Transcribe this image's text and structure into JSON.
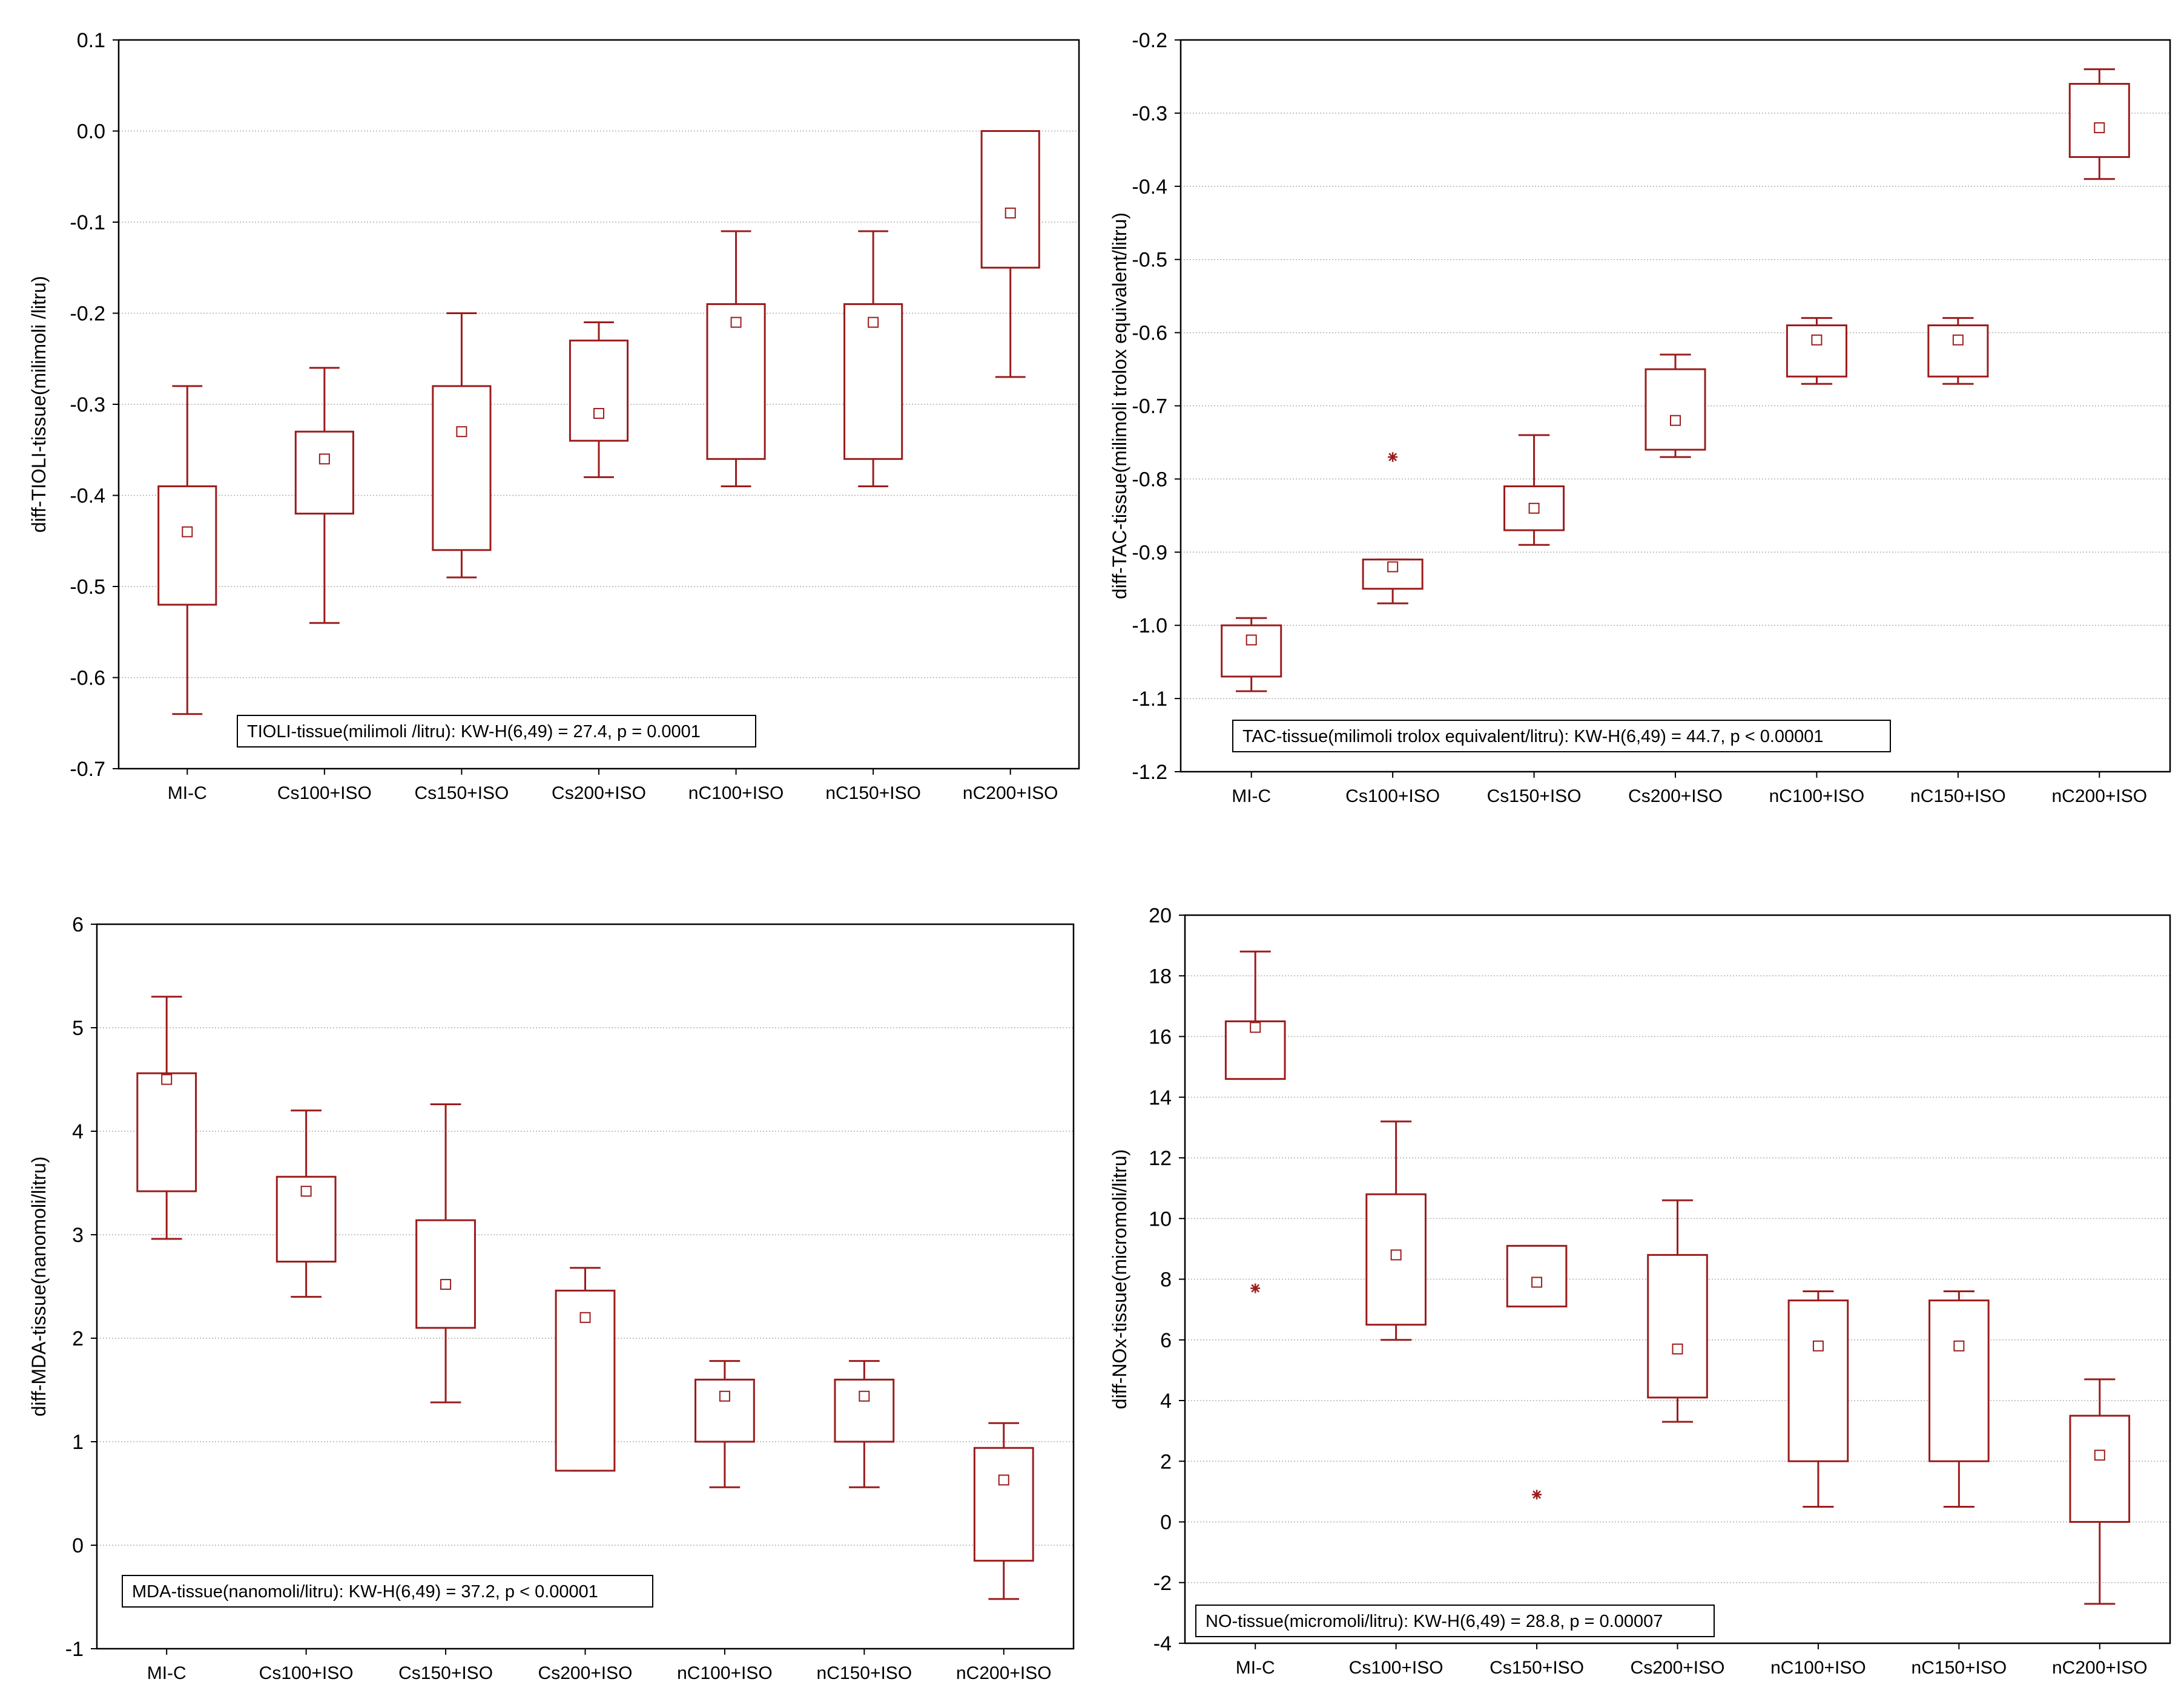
{
  "figure": {
    "colors": {
      "box": "#9b1c1c",
      "grid": "#b0b0b0",
      "axis": "#000000"
    },
    "icons": {
      "median_marker": "open-square",
      "outlier_marker": "asterisk"
    }
  },
  "chart_data": [
    {
      "id": "tioli",
      "type": "boxplot",
      "ylabel": "diff-TIOLI-tissue(milimoli /litru)",
      "ylim": [
        -0.7,
        0.1
      ],
      "yticks": [
        "0.1",
        "0.0",
        "-0.1",
        "-0.2",
        "-0.3",
        "-0.4",
        "-0.5",
        "-0.6",
        "-0.7"
      ],
      "ytick_values": [
        0.1,
        0.0,
        -0.1,
        -0.2,
        -0.3,
        -0.4,
        -0.5,
        -0.6,
        -0.7
      ],
      "categories": [
        "MI-C",
        "Cs100+ISO",
        "Cs150+ISO",
        "Cs200+ISO",
        "nC100+ISO",
        "nC150+ISO",
        "nC200+ISO"
      ],
      "boxes": [
        {
          "median": -0.44,
          "q1": -0.52,
          "q3": -0.39,
          "min": -0.64,
          "max": -0.28,
          "outliers": []
        },
        {
          "median": -0.36,
          "q1": -0.42,
          "q3": -0.33,
          "min": -0.54,
          "max": -0.26,
          "outliers": []
        },
        {
          "median": -0.33,
          "q1": -0.46,
          "q3": -0.28,
          "min": -0.49,
          "max": -0.2,
          "outliers": []
        },
        {
          "median": -0.31,
          "q1": -0.34,
          "q3": -0.23,
          "min": -0.38,
          "max": -0.21,
          "outliers": []
        },
        {
          "median": -0.21,
          "q1": -0.36,
          "q3": -0.19,
          "min": -0.39,
          "max": -0.11,
          "outliers": []
        },
        {
          "median": -0.21,
          "q1": -0.36,
          "q3": -0.19,
          "min": -0.39,
          "max": -0.11,
          "outliers": []
        },
        {
          "median": -0.09,
          "q1": -0.15,
          "q3": 0.0,
          "min": -0.27,
          "max": 0.0,
          "outliers": []
        }
      ],
      "annotation": "TIOLI-tissue(milimoli /litru):   KW-H(6,49) = 27.4,  p = 0.0001"
    },
    {
      "id": "tac",
      "type": "boxplot",
      "ylabel": "diff-TAC-tissue(milimoli trolox equivalent/litru)",
      "ylim": [
        -1.2,
        -0.2
      ],
      "yticks": [
        "-0.2",
        "-0.3",
        "-0.4",
        "-0.5",
        "-0.6",
        "-0.7",
        "-0.8",
        "-0.9",
        "-1.0",
        "-1.1",
        "-1.2"
      ],
      "ytick_values": [
        -0.2,
        -0.3,
        -0.4,
        -0.5,
        -0.6,
        -0.7,
        -0.8,
        -0.9,
        -1.0,
        -1.1,
        -1.2
      ],
      "categories": [
        "MI-C",
        "Cs100+ISO",
        "Cs150+ISO",
        "Cs200+ISO",
        "nC100+ISO",
        "nC150+ISO",
        "nC200+ISO"
      ],
      "boxes": [
        {
          "median": -1.02,
          "q1": -1.07,
          "q3": -1.0,
          "min": -1.09,
          "max": -0.99,
          "outliers": []
        },
        {
          "median": -0.92,
          "q1": -0.95,
          "q3": -0.91,
          "min": -0.97,
          "max": -0.91,
          "outliers": [
            -0.77
          ]
        },
        {
          "median": -0.84,
          "q1": -0.87,
          "q3": -0.81,
          "min": -0.89,
          "max": -0.74,
          "outliers": []
        },
        {
          "median": -0.72,
          "q1": -0.76,
          "q3": -0.65,
          "min": -0.77,
          "max": -0.63,
          "outliers": []
        },
        {
          "median": -0.61,
          "q1": -0.66,
          "q3": -0.59,
          "min": -0.67,
          "max": -0.58,
          "outliers": []
        },
        {
          "median": -0.61,
          "q1": -0.66,
          "q3": -0.59,
          "min": -0.67,
          "max": -0.58,
          "outliers": []
        },
        {
          "median": -0.32,
          "q1": -0.36,
          "q3": -0.26,
          "min": -0.39,
          "max": -0.24,
          "outliers": []
        }
      ],
      "annotation": "TAC-tissue(milimoli trolox equivalent/litru):   KW-H(6,49) = 44.7,  p < 0.00001"
    },
    {
      "id": "mda",
      "type": "boxplot",
      "ylabel": "diff-MDA-tissue(nanomoli/litru)",
      "ylim": [
        -1,
        6
      ],
      "yticks": [
        "6",
        "5",
        "4",
        "3",
        "2",
        "1",
        "0",
        "-1"
      ],
      "ytick_values": [
        6,
        5,
        4,
        3,
        2,
        1,
        0,
        -1
      ],
      "categories": [
        "MI-C",
        "Cs100+ISO",
        "Cs150+ISO",
        "Cs200+ISO",
        "nC100+ISO",
        "nC150+ISO",
        "nC200+ISO"
      ],
      "boxes": [
        {
          "median": 4.5,
          "q1": 3.42,
          "q3": 4.56,
          "min": 2.96,
          "max": 5.3,
          "outliers": []
        },
        {
          "median": 3.42,
          "q1": 2.74,
          "q3": 3.56,
          "min": 2.4,
          "max": 4.2,
          "outliers": []
        },
        {
          "median": 2.52,
          "q1": 2.1,
          "q3": 3.14,
          "min": 1.38,
          "max": 4.26,
          "outliers": []
        },
        {
          "median": 2.2,
          "q1": 0.72,
          "q3": 2.46,
          "min": 0.72,
          "max": 2.68,
          "outliers": []
        },
        {
          "median": 1.44,
          "q1": 1.0,
          "q3": 1.6,
          "min": 0.56,
          "max": 1.78,
          "outliers": []
        },
        {
          "median": 1.44,
          "q1": 1.0,
          "q3": 1.6,
          "min": 0.56,
          "max": 1.78,
          "outliers": []
        },
        {
          "median": 0.63,
          "q1": -0.15,
          "q3": 0.94,
          "min": -0.52,
          "max": 1.18,
          "outliers": []
        }
      ],
      "annotation": "MDA-tissue(nanomoli/litru):   KW-H(6,49) = 37.2,  p < 0.00001"
    },
    {
      "id": "nox",
      "type": "boxplot",
      "ylabel": "diff-NOx-tissue(micromoli/litru)",
      "ylim": [
        -4,
        20
      ],
      "yticks": [
        "20",
        "18",
        "16",
        "14",
        "12",
        "10",
        "8",
        "6",
        "4",
        "2",
        "0",
        "-2",
        "-4"
      ],
      "ytick_values": [
        20,
        18,
        16,
        14,
        12,
        10,
        8,
        6,
        4,
        2,
        0,
        -2,
        -4
      ],
      "categories": [
        "MI-C",
        "Cs100+ISO",
        "Cs150+ISO",
        "Cs200+ISO",
        "nC100+ISO",
        "nC150+ISO",
        "nC200+ISO"
      ],
      "boxes": [
        {
          "median": 16.3,
          "q1": 14.6,
          "q3": 16.5,
          "min": 14.6,
          "max": 18.8,
          "outliers": [
            7.7
          ]
        },
        {
          "median": 8.8,
          "q1": 6.5,
          "q3": 10.8,
          "min": 6.0,
          "max": 13.2,
          "outliers": []
        },
        {
          "median": 7.9,
          "q1": 7.1,
          "q3": 9.1,
          "min": 7.1,
          "max": 9.1,
          "outliers": [
            0.9
          ]
        },
        {
          "median": 5.7,
          "q1": 4.1,
          "q3": 8.8,
          "min": 3.3,
          "max": 10.6,
          "outliers": []
        },
        {
          "median": 5.8,
          "q1": 2.0,
          "q3": 7.3,
          "min": 0.5,
          "max": 7.6,
          "outliers": []
        },
        {
          "median": 5.8,
          "q1": 2.0,
          "q3": 7.3,
          "min": 0.5,
          "max": 7.6,
          "outliers": []
        },
        {
          "median": 2.2,
          "q1": 0.0,
          "q3": 3.5,
          "min": -2.7,
          "max": 4.7,
          "outliers": []
        }
      ],
      "annotation": "NO-tissue(micromoli/litru):   KW-H(6,49) = 28.8,  p = 0.00007"
    }
  ]
}
